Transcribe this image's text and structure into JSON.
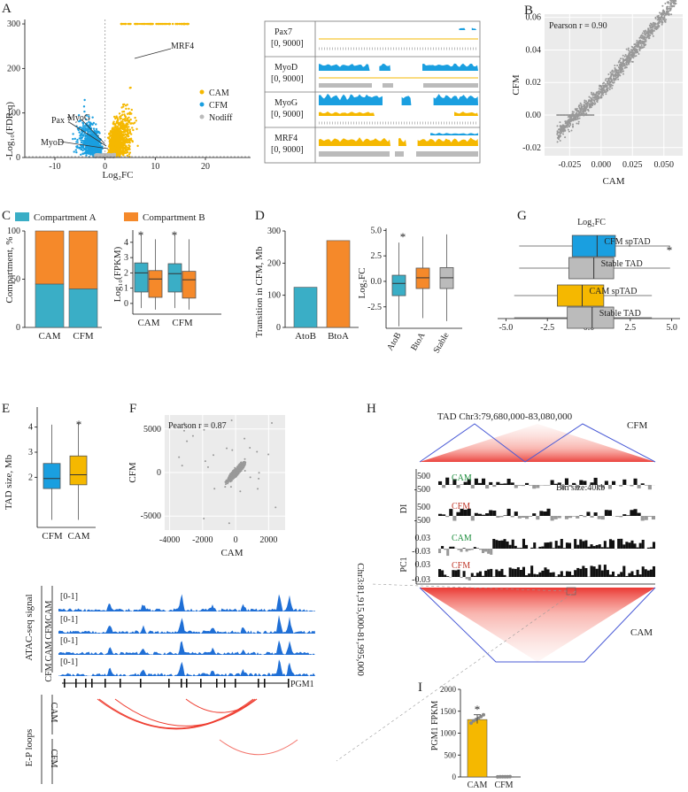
{
  "panels": {
    "A": "A",
    "B": "B",
    "C": "C",
    "D": "D",
    "E": "E",
    "F": "F",
    "G": "G",
    "H": "H",
    "I": "I"
  },
  "colors": {
    "cam": "#f5b800",
    "cfm": "#1a9fe0",
    "nodiff": "#bbbbbb",
    "grey": "#999999",
    "compA": "#3aaec6",
    "compB": "#f5892a",
    "track": "#1f6fd6",
    "loop": "#ee3a2d",
    "hic": "#e8231d",
    "tadline": "#4a5bd6",
    "black": "#111111"
  },
  "chart_data": [
    {
      "id": "A-volcano",
      "type": "scatter",
      "xlabel": "Log₂FC",
      "ylabel": "-Log₁₀(FDR q)",
      "xlim": [
        -16,
        29
      ],
      "ylim": [
        0,
        310
      ],
      "xticks": [
        "-10",
        "0",
        "10",
        "20"
      ],
      "xtick_values": [
        -10,
        0,
        10,
        20
      ],
      "yticks": [
        "0",
        "100",
        "200",
        "300"
      ],
      "ytick_values": [
        0,
        100,
        200,
        300
      ],
      "legend": [
        "CAM",
        "CFM",
        "Nodiff"
      ],
      "annotations": [
        "MRF4",
        "MyoG",
        "Pax 7",
        "MyoD"
      ]
    },
    {
      "id": "A-tracks",
      "type": "line",
      "tracks": [
        {
          "gene": "Pax7",
          "range": "[0, 9000]"
        },
        {
          "gene": "MyoD",
          "range": "[0, 9000]"
        },
        {
          "gene": "MyoG",
          "range": "[0, 9000]"
        },
        {
          "gene": "MRF4",
          "range": "[0, 9000]"
        }
      ]
    },
    {
      "id": "B-scatter",
      "type": "scatter",
      "xlabel": "CAM",
      "ylabel": "CFM",
      "xlim": [
        -0.045,
        0.065
      ],
      "ylim": [
        -0.025,
        0.062
      ],
      "xticks": [
        "-0.025",
        "0.000",
        "0.025",
        "0.050"
      ],
      "xtick_values": [
        -0.025,
        0,
        0.025,
        0.05
      ],
      "yticks": [
        "-0.02",
        "0.00",
        "0.02",
        "0.04",
        "0.06"
      ],
      "ytick_values": [
        -0.02,
        0,
        0.02,
        0.04,
        0.06
      ],
      "annotation": "Pearson r = 0.90"
    },
    {
      "id": "C-stacked",
      "type": "bar",
      "categories": [
        "CAM",
        "CFM"
      ],
      "series": [
        {
          "name": "Compartment A",
          "values": [
            45,
            40
          ]
        },
        {
          "name": "Compartment B",
          "values": [
            55,
            60
          ]
        }
      ],
      "ylabel": "Compartment, %",
      "ylim": [
        0,
        100
      ],
      "yticks": [
        "0",
        "50",
        "100"
      ],
      "ytick_values": [
        0,
        50,
        100
      ]
    },
    {
      "id": "C-box",
      "type": "box",
      "categories": [
        "CAM",
        "CFM"
      ],
      "ylabel": "Log₁₀(FPKM)",
      "ylim": [
        -0.7,
        4.8
      ],
      "yticks": [
        "0",
        "1",
        "2",
        "3",
        "4"
      ],
      "ytick_values": [
        0,
        1,
        2,
        3,
        4
      ],
      "boxes": [
        {
          "group": "CAM",
          "series": "A",
          "min": -0.3,
          "q1": 0.75,
          "median": 2.0,
          "q3": 2.65,
          "max": 4.5
        },
        {
          "group": "CAM",
          "series": "B",
          "min": -0.4,
          "q1": 0.4,
          "median": 1.6,
          "q3": 2.15,
          "max": 4.2
        },
        {
          "group": "CFM",
          "series": "A",
          "min": -0.3,
          "q1": 0.75,
          "median": 1.95,
          "q3": 2.6,
          "max": 4.5
        },
        {
          "group": "CFM",
          "series": "B",
          "min": -0.4,
          "q1": 0.35,
          "median": 1.55,
          "q3": 2.1,
          "max": 4.2
        }
      ],
      "marks": [
        "*",
        "*"
      ]
    },
    {
      "id": "D-bar",
      "type": "bar",
      "categories": [
        "AtoB",
        "BtoA"
      ],
      "values": [
        125,
        270
      ],
      "ylabel": "Transition in CFM, Mb",
      "ylim": [
        0,
        300
      ],
      "yticks": [
        "0",
        "100",
        "200",
        "300"
      ],
      "ytick_values": [
        0,
        100,
        200,
        300
      ]
    },
    {
      "id": "D-box",
      "type": "box",
      "categories": [
        "AtoB",
        "BtoA",
        "Stable"
      ],
      "ylabel": "Log₂FC",
      "ylim": [
        -4.6,
        5.2
      ],
      "yticks": [
        "-2.5",
        "0.0",
        "2.5",
        "5.0"
      ],
      "ytick_values": [
        -2.5,
        0,
        2.5,
        5
      ],
      "boxes": [
        {
          "group": "AtoB",
          "min": -4.4,
          "q1": -1.4,
          "median": -0.2,
          "q3": 0.6,
          "max": 3.8
        },
        {
          "group": "BtoA",
          "min": -3.6,
          "q1": -0.7,
          "median": 0.35,
          "q3": 1.3,
          "max": 4.4
        },
        {
          "group": "Stable",
          "min": -3.9,
          "q1": -0.7,
          "median": 0.35,
          "q3": 1.35,
          "max": 4.6
        }
      ],
      "marks": [
        "*"
      ]
    },
    {
      "id": "G-hbox",
      "type": "box",
      "title": "Log₂FC",
      "xlim": [
        -5.5,
        5.5
      ],
      "xticks": [
        "-5.0",
        "-2.5",
        "0.0",
        "2.5",
        "5.0"
      ],
      "xtick_values": [
        -5,
        -2.5,
        0,
        2.5,
        5
      ],
      "boxes": [
        {
          "label": "CFM spTAD",
          "min": -4.2,
          "q1": -1.0,
          "median": 0.5,
          "q3": 1.6,
          "max": 4.9
        },
        {
          "label": "Stable TAD",
          "min": -4.2,
          "q1": -1.2,
          "median": 0.3,
          "q3": 1.5,
          "max": 4.9
        },
        {
          "label": "CAM spTAD",
          "min": -4.5,
          "q1": -1.9,
          "median": -0.4,
          "q3": 0.9,
          "max": 3.8
        },
        {
          "label": "Stable TAD",
          "min": -4.5,
          "q1": -1.3,
          "median": 0.2,
          "q3": 1.5,
          "max": 3.8
        }
      ],
      "marks": [
        "*"
      ]
    },
    {
      "id": "E-box",
      "type": "box",
      "categories": [
        "CFM",
        "CAM"
      ],
      "ylabel": "TAD size, Mb",
      "ylim": [
        0,
        4.8
      ],
      "yticks": [
        "2",
        "3",
        "4"
      ],
      "ytick_values": [
        2,
        3,
        4
      ],
      "boxes": [
        {
          "group": "CFM",
          "min": 0.3,
          "q1": 1.55,
          "median": 1.95,
          "q3": 2.55,
          "max": 4.1
        },
        {
          "group": "CAM",
          "min": 0.3,
          "q1": 1.7,
          "median": 2.1,
          "q3": 2.85,
          "max": 4.15
        }
      ],
      "marks": [
        "*"
      ]
    },
    {
      "id": "F-scatter",
      "type": "scatter",
      "xlabel": "CAM",
      "ylabel": "CFM",
      "xlim": [
        -4300,
        3000
      ],
      "ylim": [
        -6600,
        6600
      ],
      "xticks": [
        "-4000",
        "-2000",
        "0",
        "2000"
      ],
      "xtick_values": [
        -4000,
        -2000,
        0,
        2000
      ],
      "yticks": [
        "-5000",
        "0",
        "5000"
      ],
      "ytick_values": [
        -5000,
        0,
        5000
      ],
      "annotation": "Pearson r = 0.87"
    },
    {
      "id": "H-hic",
      "type": "heatmap",
      "title": "TAD Chr3:79,680,000-83,080,000",
      "labels": {
        "cfm": "CFM",
        "cam": "CAM",
        "di": "DI",
        "pc1": "PC1",
        "bin": "Bin size:40kb"
      },
      "di_ticks": [
        "500",
        "-500",
        "500",
        "-500"
      ],
      "pc1_ticks": [
        "0.03",
        "-0.03",
        "0.03",
        "-0.03"
      ]
    },
    {
      "id": "ATAC-tracks",
      "type": "line",
      "ylabel": "ATAC-seq signal",
      "tracks": [
        {
          "name": "CAM",
          "range": "[0-1]"
        },
        {
          "name": "CFM",
          "range": "[0-1]"
        },
        {
          "name": "CAM",
          "range": "[0-1]"
        },
        {
          "name": "CFM",
          "range": "[0-1]"
        }
      ],
      "gene": "PGM1",
      "coordinate": "Chr3:81,915,000-81,995,000",
      "loops_label": "E-P loops",
      "loops_groups": [
        "CAM",
        "CFM"
      ]
    },
    {
      "id": "I-bar",
      "type": "bar",
      "categories": [
        "CAM",
        "CFM"
      ],
      "values": [
        1310,
        5
      ],
      "ylabel": "PGM1 FPKM",
      "ylim": [
        0,
        2000
      ],
      "yticks": [
        "0",
        "500",
        "1000",
        "1500",
        "2000"
      ],
      "ytick_values": [
        0,
        500,
        1000,
        1500,
        2000
      ],
      "points": [
        [
          1230,
          1280,
          1310,
          1340,
          1380,
          1420
        ],
        [
          2,
          4,
          5,
          5,
          6,
          8
        ]
      ],
      "marks": [
        "*"
      ]
    }
  ]
}
